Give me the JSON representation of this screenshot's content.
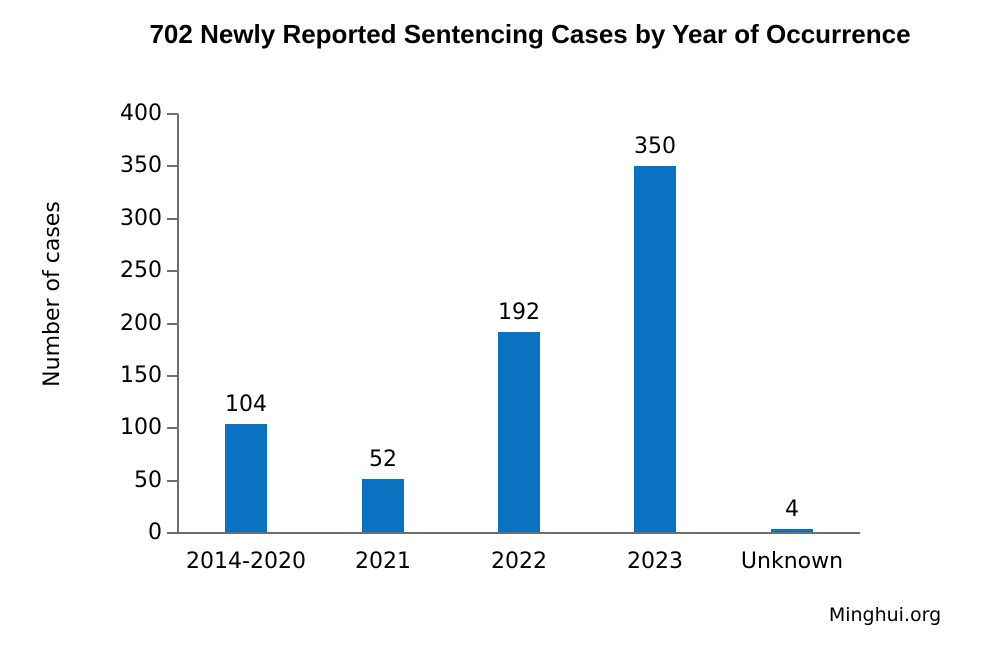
{
  "chart_data": {
    "type": "bar",
    "title": "702 Newly Reported Sentencing Cases by Year of Occurrence",
    "categories": [
      "2014-2020",
      "2021",
      "2022",
      "2023",
      "Unknown"
    ],
    "values": [
      104,
      52,
      192,
      350,
      4
    ],
    "xlabel": "",
    "ylabel": "Number of cases",
    "ylim": [
      0,
      400
    ],
    "yticks": [
      0,
      50,
      100,
      150,
      200,
      250,
      300,
      350,
      400
    ],
    "grid": false,
    "legend": "none",
    "show_data_labels": true,
    "bar_color": "#0a72c1",
    "axis_color": "#6e6e6e",
    "text_color": "#000000",
    "source": "Minghui.org"
  }
}
